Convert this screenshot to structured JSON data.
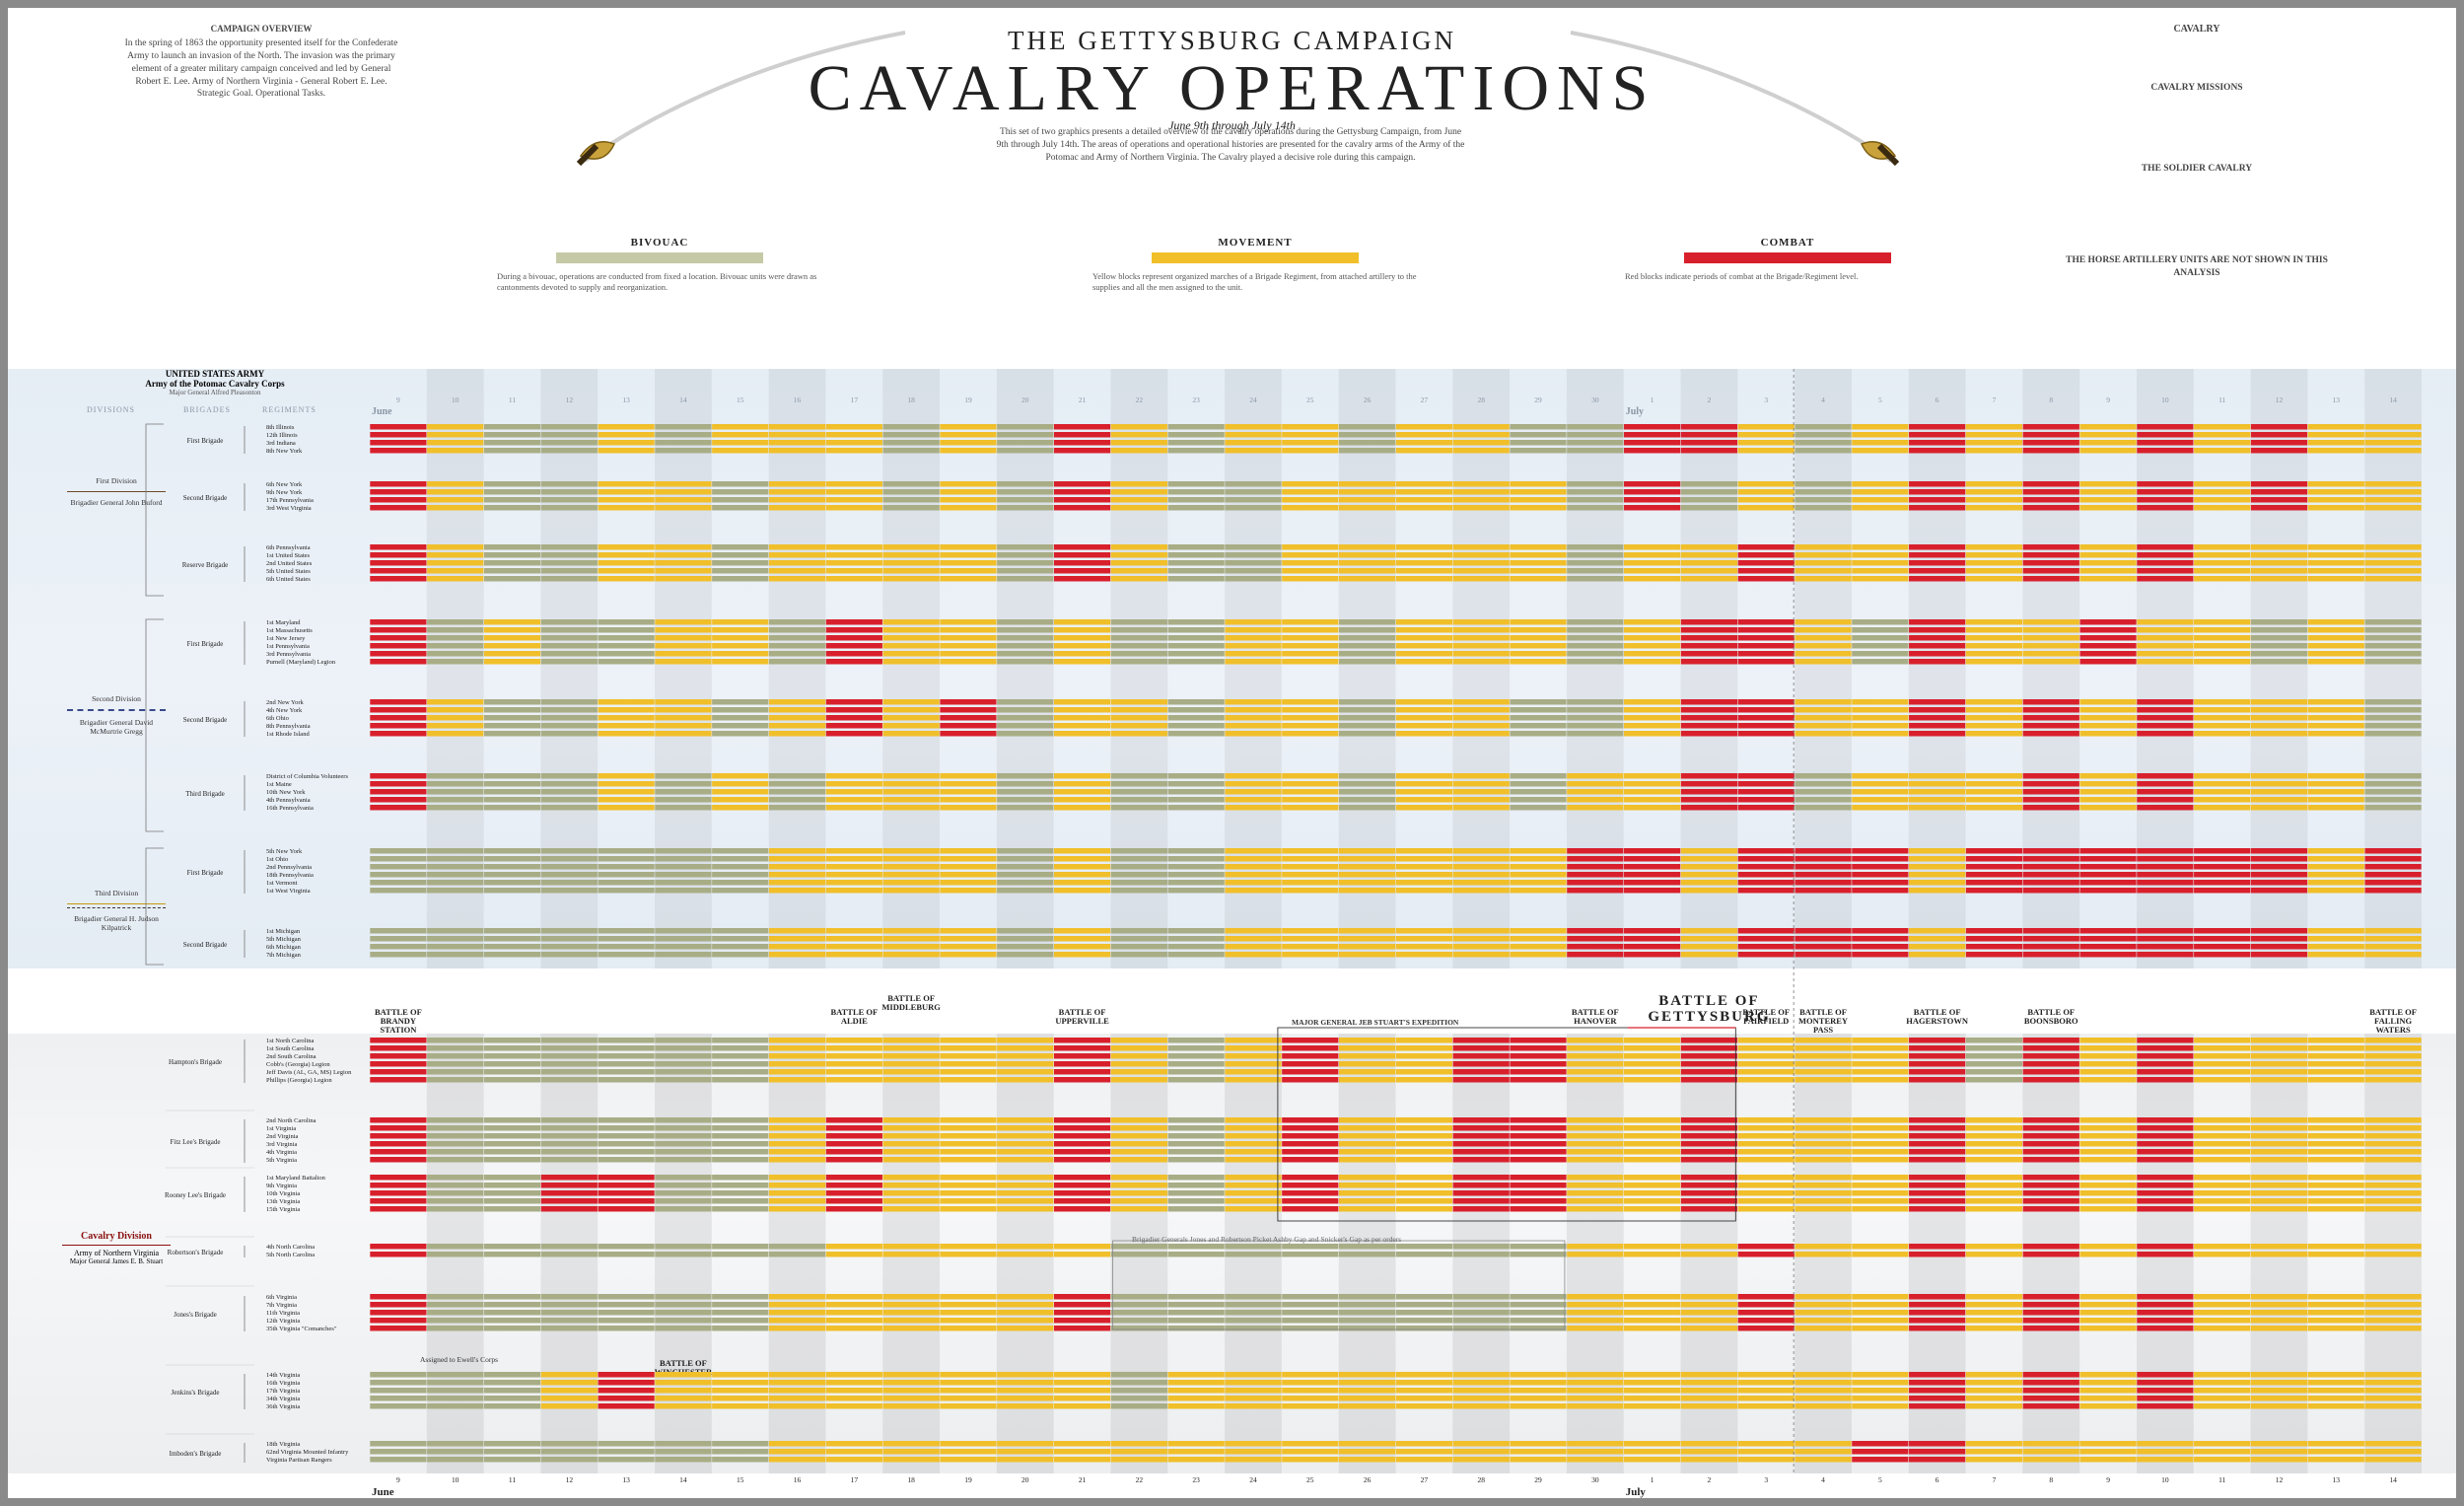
{
  "header": {
    "supertitle": "THE GETTYSBURG CAMPAIGN",
    "title": "CAVALRY OPERATIONS",
    "dates": "June 9th through July 14th"
  },
  "intro": {
    "left_title": "CAMPAIGN OVERVIEW",
    "left_text": "In the spring of 1863 the opportunity presented itself for the Confederate Army to launch an invasion of the North. The invasion was the primary element of a greater military campaign conceived and led by General Robert E. Lee. Army of Northern Virginia - General Robert E. Lee. Strategic Goal. Operational Tasks.",
    "center_text": "This set of two graphics presents a detailed overview of the cavalry operations during the Gettysburg Campaign, from June 9th through July 14th. The areas of operations and operational histories are presented for the cavalry arms of the Army of the Potomac and Army of Northern Virginia. The Cavalry played a decisive role during this campaign.",
    "right_title": "CAVALRY",
    "right_sub": "CAVALRY MISSIONS",
    "right_sub2": "THE SOLDIER CAVALRY",
    "right_sub3": "THE HORSE ARTILLERY UNITS ARE NOT SHOWN IN THIS ANALYSIS"
  },
  "legend": {
    "bivouac": {
      "label": "BIVOUAC",
      "color": "#c6c9a6",
      "text": "During a bivouac, operations are conducted from fixed a location. Bivouac units were drawn as cantonments devoted to supply and reorganization."
    },
    "movement": {
      "label": "MOVEMENT",
      "color": "#f0bf2a",
      "text": "Yellow blocks represent organized marches of a Brigade Regiment, from attached artillery to the supplies and all the men assigned to the unit."
    },
    "combat": {
      "label": "COMBAT",
      "color": "#d8202c",
      "text": "Red blocks indicate periods of combat at the Brigade/Regiment level."
    }
  },
  "us_army": {
    "title": "UNITED STATES ARMY",
    "subtitle": "Army of the Potomac Cavalry Corps",
    "commander": "Major General Alfred Pleasonton",
    "col_divisions": "DIVISIONS",
    "col_brigades": "BRIGADES",
    "col_regiments": "REGIMENTS",
    "divisions": [
      {
        "name": "First Division",
        "commander": "Brigadier General John Buford"
      },
      {
        "name": "Second Division",
        "commander": "Brigadier General David McMurtrie Gregg"
      },
      {
        "name": "Third Division",
        "commander": "Brigadier General H. Judson Kilpatrick"
      }
    ]
  },
  "csa_army": {
    "title": "Cavalry Division",
    "subtitle": "Army of Northern Virginia",
    "commander": "Major General James E. B. Stuart",
    "expedition": "MAJOR GENERAL JEB STUART'S EXPEDITION",
    "note_robertson": "Brigadier Generals Jones and Robertson Picket Ashby Gap and Snicker's Gap as per orders",
    "note_ewell": "Assigned to Ewell's Corps",
    "battles": [
      {
        "name": "BATTLE OF BRANDY STATION",
        "day": 0
      },
      {
        "name": "BATTLE OF WINCHESTER",
        "day": 5
      },
      {
        "name": "BATTLE OF ALDIE",
        "day": 8
      },
      {
        "name": "BATTLE OF MIDDLEBURG",
        "day": 9
      },
      {
        "name": "BATTLE OF UPPERVILLE",
        "day": 12
      },
      {
        "name": "BATTLE OF HANOVER",
        "day": 21
      },
      {
        "name": "BATTLE OF GETTYSBURG",
        "day": 23
      },
      {
        "name": "BATTLE OF FAIRFIELD",
        "day": 24
      },
      {
        "name": "BATTLE OF MONTEREY PASS",
        "day": 25
      },
      {
        "name": "BATTLE OF HAGERSTOWN",
        "day": 27
      },
      {
        "name": "BATTLE OF BOONSBORO",
        "day": 29
      },
      {
        "name": "BATTLE OF FALLING WATERS",
        "day": 35
      }
    ]
  },
  "chart_data": {
    "type": "heatmap",
    "title": "CAVALRY OPERATIONS",
    "x_axis": {
      "label": "",
      "days": [
        "9",
        "10",
        "11",
        "12",
        "13",
        "14",
        "15",
        "16",
        "17",
        "18",
        "19",
        "20",
        "21",
        "22",
        "23",
        "24",
        "25",
        "26",
        "27",
        "28",
        "29",
        "30",
        "1",
        "2",
        "3",
        "4",
        "5",
        "6",
        "7",
        "8",
        "9",
        "10",
        "11",
        "12",
        "13",
        "14"
      ],
      "months": [
        {
          "name": "June",
          "start_index": 0
        },
        {
          "name": "July",
          "start_index": 22
        }
      ]
    },
    "states": {
      "0": "bivouac",
      "1": "movement",
      "2": "combat"
    },
    "state_colors": {
      "0": "#a8ad86",
      "1": "#f0bf2a",
      "2": "#d8202c"
    },
    "series": [
      {
        "army": "US",
        "brigade": "First Brigade",
        "regiments": [
          "8th Illinois",
          "12th Illinois",
          "3rd Indiana",
          "8th New York"
        ],
        "days": [
          2,
          1,
          0,
          0,
          1,
          0,
          1,
          1,
          1,
          0,
          1,
          0,
          2,
          1,
          0,
          1,
          1,
          0,
          1,
          1,
          0,
          0,
          2,
          2,
          1,
          0,
          1,
          2,
          1,
          2,
          1,
          2,
          1,
          2,
          1,
          1
        ]
      },
      {
        "army": "US",
        "brigade": "Second Brigade",
        "regiments": [
          "6th New York",
          "9th New York",
          "17th Pennsylvania",
          "3rd West Virginia"
        ],
        "days": [
          2,
          1,
          0,
          0,
          1,
          1,
          0,
          1,
          1,
          0,
          1,
          0,
          2,
          1,
          0,
          0,
          1,
          1,
          1,
          1,
          1,
          0,
          2,
          0,
          1,
          0,
          1,
          2,
          1,
          2,
          1,
          2,
          1,
          2,
          1,
          1
        ]
      },
      {
        "army": "US",
        "brigade": "Reserve Brigade",
        "regiments": [
          "6th Pennsylvania",
          "1st United States",
          "2nd United States",
          "5th United States",
          "6th United States"
        ],
        "days": [
          2,
          1,
          0,
          0,
          1,
          1,
          0,
          1,
          1,
          1,
          1,
          0,
          2,
          1,
          0,
          0,
          1,
          1,
          1,
          1,
          1,
          0,
          1,
          1,
          2,
          1,
          1,
          2,
          1,
          2,
          1,
          2,
          1,
          1,
          1,
          1
        ]
      },
      {
        "army": "US",
        "brigade": "First Brigade",
        "regiments": [
          "1st Maryland",
          "1st Massachusetts",
          "1st New Jersey",
          "1st Pennsylvania",
          "3rd Pennsylvania",
          "Purnell (Maryland) Legion"
        ],
        "days": [
          2,
          0,
          1,
          0,
          0,
          1,
          1,
          0,
          2,
          1,
          1,
          0,
          1,
          0,
          0,
          1,
          1,
          0,
          1,
          1,
          1,
          0,
          1,
          2,
          2,
          1,
          0,
          2,
          1,
          1,
          2,
          1,
          1,
          0,
          1,
          0
        ]
      },
      {
        "army": "US",
        "brigade": "Second Brigade",
        "regiments": [
          "2nd New York",
          "4th New York",
          "6th Ohio",
          "8th Pennsylvania",
          "1st Rhode Island"
        ],
        "days": [
          2,
          1,
          0,
          0,
          1,
          1,
          0,
          1,
          2,
          1,
          2,
          0,
          1,
          1,
          0,
          1,
          1,
          0,
          1,
          1,
          0,
          0,
          1,
          2,
          2,
          1,
          1,
          2,
          1,
          2,
          1,
          2,
          1,
          1,
          1,
          0
        ]
      },
      {
        "army": "US",
        "brigade": "Third Brigade",
        "regiments": [
          "District of Columbia Volunteers",
          "1st Maine",
          "10th New York",
          "4th Pennsylvania",
          "16th Pennsylvania"
        ],
        "days": [
          2,
          0,
          0,
          0,
          1,
          0,
          1,
          0,
          1,
          1,
          1,
          0,
          1,
          0,
          0,
          1,
          1,
          0,
          1,
          1,
          0,
          1,
          1,
          2,
          2,
          0,
          1,
          1,
          1,
          2,
          1,
          2,
          1,
          1,
          1,
          0
        ]
      },
      {
        "army": "US",
        "brigade": "First Brigade",
        "regiments": [
          "5th New York",
          "1st Ohio",
          "2nd Pennsylvania",
          "18th Pennsylvania",
          "1st Vermont",
          "1st West Virginia"
        ],
        "days": [
          0,
          0,
          0,
          0,
          0,
          0,
          0,
          1,
          1,
          1,
          1,
          0,
          1,
          0,
          0,
          1,
          1,
          1,
          1,
          1,
          1,
          2,
          2,
          1,
          2,
          2,
          2,
          1,
          2,
          2,
          2,
          2,
          2,
          2,
          1,
          2
        ]
      },
      {
        "army": "US",
        "brigade": "Second Brigade",
        "regiments": [
          "1st Michigan",
          "5th Michigan",
          "6th Michigan",
          "7th Michigan"
        ],
        "days": [
          0,
          0,
          0,
          0,
          0,
          0,
          0,
          1,
          1,
          1,
          1,
          0,
          1,
          0,
          0,
          1,
          1,
          1,
          1,
          1,
          1,
          2,
          2,
          1,
          2,
          2,
          2,
          1,
          2,
          2,
          2,
          2,
          2,
          2,
          1,
          1
        ]
      },
      {
        "army": "CSA",
        "brigade": "Hampton's Brigade",
        "regiments": [
          "1st North Carolina",
          "1st South Carolina",
          "2nd South Carolina",
          "Cobb's (Georgia) Legion",
          "Jeff Davis (AL, GA, MS) Legion",
          "Phillips (Georgia) Legion"
        ],
        "days": [
          2,
          0,
          0,
          0,
          0,
          0,
          0,
          1,
          1,
          1,
          1,
          1,
          2,
          1,
          0,
          1,
          2,
          1,
          1,
          2,
          2,
          1,
          1,
          2,
          1,
          1,
          1,
          2,
          0,
          2,
          1,
          2,
          1,
          1,
          1,
          1
        ]
      },
      {
        "army": "CSA",
        "brigade": "Fitz Lee's Brigade",
        "regiments": [
          "2nd North Carolina",
          "1st Virginia",
          "2nd Virginia",
          "3rd Virginia",
          "4th Virginia",
          "5th Virginia"
        ],
        "days": [
          2,
          0,
          0,
          0,
          0,
          0,
          0,
          1,
          2,
          1,
          1,
          1,
          2,
          1,
          0,
          1,
          2,
          1,
          1,
          2,
          2,
          1,
          1,
          2,
          1,
          1,
          1,
          2,
          1,
          2,
          1,
          2,
          1,
          1,
          1,
          1
        ]
      },
      {
        "army": "CSA",
        "brigade": "Rooney Lee's Brigade",
        "regiments": [
          "1st Maryland Battalion",
          "9th Virginia",
          "10th Virginia",
          "13th Virginia",
          "15th Virginia"
        ],
        "days": [
          2,
          0,
          0,
          2,
          2,
          0,
          0,
          1,
          2,
          1,
          1,
          1,
          2,
          1,
          0,
          1,
          2,
          1,
          1,
          2,
          2,
          1,
          1,
          2,
          1,
          1,
          1,
          2,
          1,
          2,
          1,
          2,
          1,
          1,
          1,
          1
        ]
      },
      {
        "army": "CSA",
        "brigade": "Robertson's Brigade",
        "regiments": [
          "4th North Carolina",
          "5th North Carolina"
        ],
        "days": [
          2,
          0,
          0,
          0,
          0,
          0,
          0,
          0,
          1,
          1,
          1,
          1,
          1,
          0,
          0,
          0,
          0,
          0,
          0,
          0,
          0,
          1,
          1,
          1,
          2,
          1,
          1,
          2,
          1,
          2,
          1,
          2,
          1,
          1,
          1,
          1
        ]
      },
      {
        "army": "CSA",
        "brigade": "Jones's Brigade",
        "regiments": [
          "6th Virginia",
          "7th Virginia",
          "11th Virginia",
          "12th Virginia",
          "35th Virginia \"Comanches\""
        ],
        "days": [
          2,
          0,
          0,
          0,
          0,
          0,
          0,
          1,
          1,
          1,
          1,
          1,
          2,
          0,
          0,
          0,
          0,
          0,
          0,
          0,
          0,
          1,
          1,
          1,
          2,
          1,
          1,
          2,
          1,
          2,
          1,
          2,
          1,
          1,
          1,
          1
        ]
      },
      {
        "army": "CSA",
        "brigade": "Jenkins's Brigade",
        "regiments": [
          "14th Virginia",
          "16th Virginia",
          "17th Virginia",
          "34th Virginia",
          "36th Virginia"
        ],
        "days": [
          0,
          0,
          0,
          1,
          2,
          1,
          1,
          1,
          1,
          1,
          1,
          1,
          1,
          0,
          1,
          1,
          1,
          1,
          1,
          1,
          1,
          1,
          1,
          1,
          1,
          1,
          1,
          2,
          1,
          2,
          1,
          2,
          1,
          1,
          1,
          1
        ]
      },
      {
        "army": "CSA",
        "brigade": "Imboden's Brigade",
        "regiments": [
          "18th Virginia",
          "62nd Virginia Mounted Infantry",
          "Virginia Partisan Rangers"
        ],
        "days": [
          0,
          0,
          0,
          0,
          0,
          0,
          0,
          1,
          1,
          1,
          1,
          1,
          1,
          1,
          1,
          1,
          1,
          1,
          1,
          1,
          1,
          1,
          1,
          1,
          1,
          1,
          2,
          2,
          1,
          1,
          1,
          1,
          1,
          1,
          1,
          1
        ]
      }
    ]
  }
}
